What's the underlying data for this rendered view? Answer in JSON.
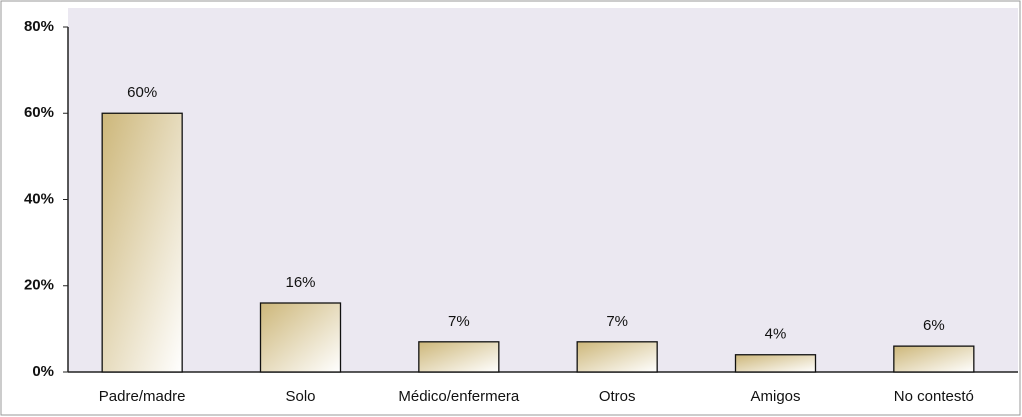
{
  "chart_data": {
    "type": "bar",
    "categories": [
      "Padre/madre",
      "Solo",
      "Médico/enfermera",
      "Otros",
      "Amigos",
      "No contestó"
    ],
    "values": [
      60,
      16,
      7,
      7,
      4,
      6
    ],
    "value_labels": [
      "60%",
      "16%",
      "7%",
      "7%",
      "4%",
      "6%"
    ],
    "color": "#cdb77a",
    "ylim": [
      0,
      80
    ],
    "yticks": [
      {
        "value": 0,
        "label": "0%"
      },
      {
        "value": 20,
        "label": "20%"
      },
      {
        "value": 40,
        "label": "40%"
      },
      {
        "value": 60,
        "label": "60%"
      },
      {
        "value": 80,
        "label": "80%"
      }
    ],
    "grid": false
  }
}
